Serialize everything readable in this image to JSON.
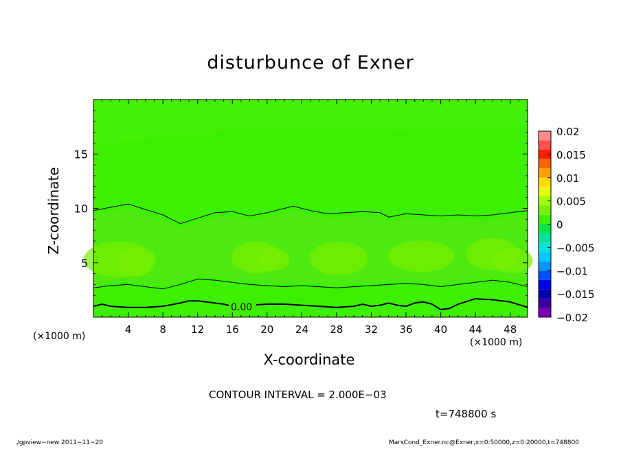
{
  "chart_data": {
    "type": "heatmap",
    "title": "disturbunce of Exner",
    "xlabel": "X-coordinate",
    "ylabel": "Z-coordinate",
    "x_unit": "(×1000 m)",
    "xlim": [
      0,
      50
    ],
    "ylim": [
      0,
      20
    ],
    "x_ticks": [
      4,
      8,
      12,
      16,
      20,
      24,
      28,
      32,
      36,
      40,
      44,
      48
    ],
    "y_ticks": [
      5,
      10,
      15
    ],
    "colorbar": {
      "ticks": [
        "0.02",
        "0.015",
        "0.01",
        "0.005",
        "0",
        "−0.005",
        "−0.01",
        "−0.015",
        "−0.02"
      ],
      "levels": [
        {
          "from": 0.018,
          "to": 0.02,
          "color": "#ff8c8c"
        },
        {
          "from": 0.016,
          "to": 0.018,
          "color": "#ff5050"
        },
        {
          "from": 0.014,
          "to": 0.016,
          "color": "#ff1e00"
        },
        {
          "from": 0.012,
          "to": 0.014,
          "color": "#ff6400"
        },
        {
          "from": 0.01,
          "to": 0.012,
          "color": "#ffa000"
        },
        {
          "from": 0.008,
          "to": 0.01,
          "color": "#ffdc00"
        },
        {
          "from": 0.006,
          "to": 0.008,
          "color": "#e6ff00"
        },
        {
          "from": 0.004,
          "to": 0.006,
          "color": "#a0ff00"
        },
        {
          "from": 0.002,
          "to": 0.004,
          "color": "#78f000"
        },
        {
          "from": 0.0,
          "to": 0.002,
          "color": "#3cf000"
        },
        {
          "from": -0.002,
          "to": 0.0,
          "color": "#00e650"
        },
        {
          "from": -0.004,
          "to": -0.002,
          "color": "#00e696"
        },
        {
          "from": -0.006,
          "to": -0.004,
          "color": "#00e6dc"
        },
        {
          "from": -0.008,
          "to": -0.006,
          "color": "#00c8ff"
        },
        {
          "from": -0.01,
          "to": -0.008,
          "color": "#0096ff"
        },
        {
          "from": -0.012,
          "to": -0.01,
          "color": "#0050ff"
        },
        {
          "from": -0.014,
          "to": -0.012,
          "color": "#0000e6"
        },
        {
          "from": -0.016,
          "to": -0.014,
          "color": "#0000b4"
        },
        {
          "from": -0.018,
          "to": -0.016,
          "color": "#3c00a0"
        },
        {
          "from": -0.02,
          "to": -0.018,
          "color": "#7800b4"
        }
      ]
    },
    "background_color": "#3cf000",
    "lighter_color": "#5ce31a",
    "light_patch_color": "#78f000",
    "contour_labels": [
      "0.00"
    ],
    "contour_lines_z": [
      {
        "level": "upper",
        "points": [
          [
            0,
            9.8
          ],
          [
            2,
            10.1
          ],
          [
            4,
            10.4
          ],
          [
            6,
            9.9
          ],
          [
            8,
            9.4
          ],
          [
            10,
            8.6
          ],
          [
            12,
            9.1
          ],
          [
            14,
            9.6
          ],
          [
            16,
            9.7
          ],
          [
            18,
            9.3
          ],
          [
            20,
            9.6
          ],
          [
            22,
            10.0
          ],
          [
            23,
            10.2
          ],
          [
            25,
            9.8
          ],
          [
            27,
            9.5
          ],
          [
            29,
            9.6
          ],
          [
            31,
            9.7
          ],
          [
            33,
            9.6
          ],
          [
            34,
            9.2
          ],
          [
            36,
            9.5
          ],
          [
            38,
            9.4
          ],
          [
            40,
            9.3
          ],
          [
            42,
            9.4
          ],
          [
            44,
            9.3
          ],
          [
            46,
            9.4
          ],
          [
            48,
            9.6
          ],
          [
            50,
            9.8
          ]
        ]
      },
      {
        "level": "middle",
        "points": [
          [
            0,
            2.7
          ],
          [
            2,
            2.9
          ],
          [
            4,
            3.0
          ],
          [
            6,
            2.8
          ],
          [
            8,
            2.6
          ],
          [
            10,
            3.0
          ],
          [
            12,
            3.5
          ],
          [
            14,
            3.4
          ],
          [
            16,
            3.2
          ],
          [
            18,
            3.0
          ],
          [
            20,
            2.9
          ],
          [
            22,
            2.8
          ],
          [
            24,
            2.9
          ],
          [
            26,
            2.8
          ],
          [
            28,
            2.7
          ],
          [
            30,
            2.8
          ],
          [
            32,
            2.9
          ],
          [
            34,
            3.0
          ],
          [
            36,
            3.1
          ],
          [
            38,
            3.0
          ],
          [
            40,
            2.8
          ],
          [
            42,
            3.0
          ],
          [
            44,
            3.2
          ],
          [
            46,
            3.4
          ],
          [
            48,
            3.2
          ],
          [
            50,
            2.8
          ]
        ]
      },
      {
        "level": "zero",
        "points": [
          [
            0,
            1.0
          ],
          [
            1,
            1.2
          ],
          [
            2,
            1.0
          ],
          [
            4,
            0.9
          ],
          [
            6,
            0.9
          ],
          [
            8,
            1.0
          ],
          [
            10,
            1.3
          ],
          [
            11,
            1.5
          ],
          [
            12,
            1.5
          ],
          [
            13,
            1.4
          ],
          [
            15,
            1.2
          ],
          [
            16,
            1.0
          ],
          [
            18,
            1.1
          ],
          [
            20,
            1.2
          ],
          [
            22,
            1.2
          ],
          [
            24,
            1.1
          ],
          [
            26,
            1.0
          ],
          [
            28,
            0.9
          ],
          [
            30,
            1.0
          ],
          [
            31,
            1.2
          ],
          [
            32,
            1.0
          ],
          [
            33,
            1.1
          ],
          [
            34,
            1.3
          ],
          [
            35,
            1.1
          ],
          [
            36,
            1.0
          ],
          [
            37,
            1.3
          ],
          [
            38,
            1.4
          ],
          [
            39,
            1.2
          ],
          [
            40,
            0.7
          ],
          [
            41,
            0.8
          ],
          [
            42,
            1.2
          ],
          [
            44,
            1.7
          ],
          [
            46,
            1.6
          ],
          [
            48,
            1.4
          ],
          [
            50,
            0.9
          ]
        ]
      }
    ]
  },
  "text": {
    "x_unit_left": "(×1000 m)",
    "x_unit_right": "(×1000 m)",
    "contour_interval": "CONTOUR INTERVAL = 2.000E−03",
    "time": "t=748800 s",
    "footer_left": "./gpview−new   2011−11−20",
    "footer_right": "MarsCond_Exner.nc@Exner,x=0:50000,z=0:20000,t=748800"
  }
}
